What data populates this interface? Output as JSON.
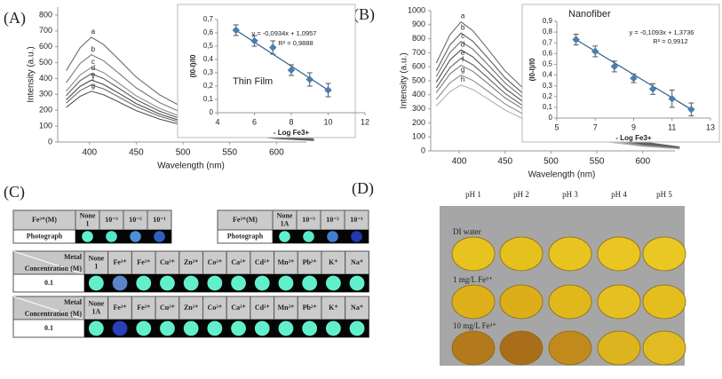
{
  "panel_labels": [
    "(A)",
    "(B)",
    "(C)",
    "(D)"
  ],
  "chart_data": [
    {
      "type": "line",
      "x_label": "Wavelength (nm)",
      "y_label": "Intensity (a.u.)",
      "x": [
        375,
        390,
        402,
        415,
        430,
        450,
        475,
        500,
        530,
        560,
        600,
        640
      ],
      "xlim": [
        366,
        632
      ],
      "xticks": [
        400,
        450,
        500,
        550,
        600
      ],
      "ylim": [
        0,
        850
      ],
      "yticks": [
        0,
        100,
        200,
        300,
        400,
        500,
        600,
        700,
        800
      ],
      "series": [
        {
          "name": "a",
          "color": "#6e6e6e",
          "values": [
            449,
            594,
            660,
            614,
            528,
            409,
            297,
            218,
            145,
            92,
            46,
            20
          ]
        },
        {
          "name": "b",
          "color": "#7a7a7a",
          "values": [
            374,
            495,
            550,
            512,
            440,
            341,
            248,
            182,
            121,
            77,
            39,
            17
          ]
        },
        {
          "name": "c",
          "color": "#8a8a8a",
          "values": [
            320,
            423,
            470,
            437,
            376,
            291,
            212,
            155,
            103,
            66,
            33,
            14
          ]
        },
        {
          "name": "d",
          "color": "#5a5a5a",
          "values": [
            292,
            387,
            430,
            400,
            344,
            267,
            194,
            142,
            95,
            60,
            30,
            13
          ]
        },
        {
          "name": "e",
          "color": "#4a4a4a",
          "values": [
            265,
            351,
            390,
            363,
            312,
            242,
            176,
            129,
            86,
            55,
            27,
            12
          ]
        },
        {
          "name": "f",
          "color": "#6a6a6a",
          "values": [
            245,
            324,
            360,
            335,
            288,
            223,
            162,
            119,
            79,
            50,
            25,
            11
          ]
        },
        {
          "name": "g",
          "color": "#505050",
          "values": [
            218,
            288,
            320,
            298,
            256,
            198,
            144,
            106,
            70,
            45,
            22,
            10
          ]
        }
      ]
    },
    {
      "type": "scatter",
      "title": "Thin Film",
      "annotations": [
        "y = -0,0934x + 1,0957",
        "R² = 0,9888"
      ],
      "x_label": "- Log Fe3+",
      "y_label": "(I0-I)/I0",
      "color": "#4a7eb0",
      "x": [
        5,
        6,
        7,
        8,
        9,
        10
      ],
      "values": [
        0.62,
        0.54,
        0.49,
        0.32,
        0.25,
        0.17
      ],
      "errors": [
        0.04,
        0.04,
        0.05,
        0.04,
        0.05,
        0.05
      ],
      "xlim": [
        4,
        12
      ],
      "xticks": [
        4,
        6,
        8,
        10,
        12
      ],
      "ylim": [
        0,
        0.7
      ],
      "yticks": [
        0,
        {
          "value": 0.1,
          "label": "0,1"
        },
        {
          "value": 0.2,
          "label": "0,2"
        },
        {
          "value": 0.3,
          "label": "0,3"
        },
        {
          "value": 0.4,
          "label": "0,4"
        },
        {
          "value": 0.5,
          "label": "0,5"
        },
        {
          "value": 0.6,
          "label": "0,6"
        },
        {
          "value": 0.7,
          "label": "0,7"
        }
      ]
    },
    {
      "type": "line",
      "x_label": "Wavelength (nm)",
      "y_label": "Intensity (a.u.)",
      "x": [
        375,
        390,
        402,
        415,
        430,
        450,
        475,
        500,
        530,
        560,
        600,
        640
      ],
      "xlim": [
        369,
        635
      ],
      "xticks": [
        400,
        450,
        500,
        550,
        600
      ],
      "ylim": [
        0,
        1000
      ],
      "yticks": [
        0,
        100,
        200,
        300,
        400,
        500,
        600,
        700,
        800,
        900,
        1000
      ],
      "series": [
        {
          "name": "a",
          "color": "#6a6a6a",
          "values": [
            626,
            828,
            920,
            856,
            736,
            570,
            414,
            304,
            202,
            129,
            64,
            28
          ]
        },
        {
          "name": "b",
          "color": "#5e5e5e",
          "values": [
            571,
            756,
            840,
            781,
            672,
            521,
            378,
            277,
            185,
            118,
            59,
            25
          ]
        },
        {
          "name": "c",
          "color": "#707070",
          "values": [
            530,
            702,
            780,
            725,
            624,
            484,
            351,
            257,
            172,
            109,
            55,
            23
          ]
        },
        {
          "name": "d",
          "color": "#4e4e4e",
          "values": [
            490,
            648,
            720,
            670,
            576,
            446,
            324,
            238,
            158,
            101,
            50,
            22
          ]
        },
        {
          "name": "e",
          "color": "#606060",
          "values": [
            449,
            594,
            660,
            614,
            528,
            409,
            297,
            218,
            145,
            92,
            46,
            20
          ]
        },
        {
          "name": "f",
          "color": "#7c7c7c",
          "values": [
            415,
            549,
            610,
            567,
            488,
            378,
            275,
            201,
            134,
            85,
            43,
            18
          ]
        },
        {
          "name": "g",
          "color": "#8c8c8c",
          "values": [
            367,
            486,
            540,
            502,
            432,
            335,
            243,
            178,
            119,
            76,
            38,
            16
          ]
        },
        {
          "name": "h",
          "color": "#b0b0b0",
          "values": [
            320,
            423,
            470,
            437,
            376,
            291,
            212,
            155,
            103,
            66,
            33,
            14
          ]
        }
      ]
    },
    {
      "type": "scatter",
      "title": "Nanofiber",
      "annotations": [
        "y = -0,1093x + 1,3736",
        "R² = 0,9912"
      ],
      "x_label": "- Log Fe3+",
      "y_label": "(I0-I)/I0",
      "color": "#4a7eb0",
      "x": [
        6,
        7,
        8,
        9,
        10,
        11,
        12
      ],
      "values": [
        0.73,
        0.62,
        0.48,
        0.37,
        0.27,
        0.18,
        0.08
      ],
      "errors": [
        0.05,
        0.05,
        0.05,
        0.04,
        0.05,
        0.08,
        0.06
      ],
      "xlim": [
        5,
        13
      ],
      "xticks": [
        5,
        7,
        9,
        11,
        13
      ],
      "ylim": [
        0,
        0.9
      ],
      "yticks": [
        0,
        {
          "value": 0.1,
          "label": "0,1"
        },
        {
          "value": 0.2,
          "label": "0,2"
        },
        {
          "value": 0.3,
          "label": "0,3"
        },
        {
          "value": 0.4,
          "label": "0,4"
        },
        {
          "value": 0.5,
          "label": "0,5"
        },
        {
          "value": 0.6,
          "label": "0,6"
        },
        {
          "value": 0.7,
          "label": "0,7"
        },
        {
          "value": 0.8,
          "label": "0,8"
        },
        {
          "value": 0.9,
          "label": "0,9"
        }
      ]
    }
  ],
  "tables": [
    {
      "header": [
        "Fe³⁺(M)",
        "None\n1",
        "10⁻³",
        "10⁻²",
        "10⁻¹"
      ],
      "row_label": "Photograph",
      "spots": [
        "#62f0cc",
        "#55e8c8",
        "#4a90d8",
        "#2e5fc0"
      ]
    },
    {
      "header": [
        "Fe³⁺(M)",
        "None\n1A",
        "10⁻³",
        "10⁻²",
        "10⁻¹"
      ],
      "row_label": "Photograph",
      "spots": [
        "#62f0cc",
        "#58eacb",
        "#3f7fd0",
        "#2238b0"
      ]
    },
    {
      "corner": [
        "Metal",
        "Concentration (M)"
      ],
      "header": [
        "None\n1",
        "Fe³⁺",
        "Fe²⁺",
        "Cu²⁺",
        "Zn²⁺",
        "Co²⁺",
        "Ca²⁺",
        "Cd²⁺",
        "Mn²⁺",
        "Pb²⁺",
        "K⁺",
        "Na⁺"
      ],
      "row_label": "0.1",
      "spots": [
        "#62f0cc",
        "#5a86c8",
        "#62f0cc",
        "#62f0cc",
        "#62f0cc",
        "#62f0cc",
        "#62f0cc",
        "#62f0cc",
        "#62f0cc",
        "#62f0cc",
        "#62f0cc",
        "#62f0cc"
      ]
    },
    {
      "corner": [
        "Metal",
        "Concentration (M)"
      ],
      "header": [
        "None\n1A",
        "Fe³⁺",
        "Fe²⁺",
        "Cu²⁺",
        "Zn²⁺",
        "Co²⁺",
        "Ca²⁺",
        "Cd²⁺",
        "Mn²⁺",
        "Pb²⁺",
        "K⁺",
        "Na⁺"
      ],
      "row_label": "0.1",
      "spots": [
        "#62f0cc",
        "#2a3fb8",
        "#62f0cc",
        "#62f0cc",
        "#62f0cc",
        "#62f0cc",
        "#62f0cc",
        "#62f0cc",
        "#62f0cc",
        "#62f0cc",
        "#62f0cc",
        "#62f0cc"
      ]
    }
  ],
  "photo": {
    "columns": [
      "pH 1",
      "pH 2",
      "pH 3",
      "pH 4",
      "pH 5"
    ],
    "rows": [
      {
        "label": "DI water",
        "colors": [
          "#e8c21e",
          "#e6c01c",
          "#e8c420",
          "#e9c622",
          "#eac824"
        ]
      },
      {
        "label": "1 mg/L Fe³⁺",
        "colors": [
          "#ddb01a",
          "#dcae1a",
          "#e0b81c",
          "#e6c020",
          "#e4be1e"
        ]
      },
      {
        "label": "10 mg/L Fe³⁺",
        "colors": [
          "#b27a1c",
          "#a86e1a",
          "#c08a1c",
          "#dcb420",
          "#e0bc22"
        ]
      }
    ]
  }
}
